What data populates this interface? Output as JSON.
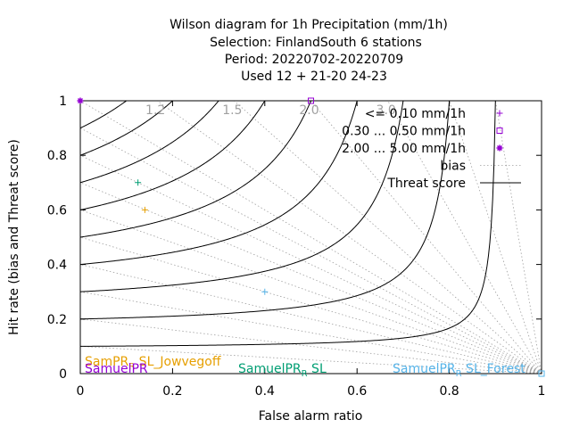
{
  "chart_data": {
    "type": "scatter",
    "title_lines": [
      "Wilson diagram  for 1h Precipitation (mm/1h)",
      "Selection: FinlandSouth       6 stations",
      "Period: 20220702-20220709",
      "Used  12 + 21-20 24-23"
    ],
    "xlabel": "False alarm ratio",
    "ylabel": "Hit rate (bias and Threat score)",
    "xlim": [
      0,
      1
    ],
    "ylim": [
      0,
      1
    ],
    "x_ticks": [
      {
        "value": 0,
        "label": "0"
      },
      {
        "value": 0.2,
        "label": "0.2"
      },
      {
        "value": 0.4,
        "label": "0.4"
      },
      {
        "value": 0.6,
        "label": "0.6"
      },
      {
        "value": 0.8,
        "label": "0.8"
      },
      {
        "value": 1,
        "label": "1"
      }
    ],
    "y_ticks": [
      {
        "value": 0,
        "label": "0"
      },
      {
        "value": 0.2,
        "label": "0.2"
      },
      {
        "value": 0.4,
        "label": "0.4"
      },
      {
        "value": 0.6,
        "label": "0.6"
      },
      {
        "value": 0.8,
        "label": "0.8"
      },
      {
        "value": 1,
        "label": "1"
      }
    ],
    "bias_lines": [
      0.1,
      0.2,
      0.3,
      0.4,
      0.5,
      0.6,
      0.7,
      0.8,
      0.9,
      1.0,
      1.2,
      1.5,
      2.0,
      3.0,
      5.0,
      10.0
    ],
    "bias_labels": [
      {
        "bias": 1.2,
        "label": "1.2"
      },
      {
        "bias": 1.5,
        "label": "1.5"
      },
      {
        "bias": 2.0,
        "label": "2.0"
      },
      {
        "bias": 3.0,
        "label": "3.0"
      }
    ],
    "threat_score_lines": [
      0.1,
      0.2,
      0.3,
      0.4,
      0.5,
      0.6,
      0.7,
      0.8,
      0.9
    ],
    "legend": [
      {
        "label": "<= 0.10 mm/1h",
        "marker": "plus",
        "color": "#9400d3"
      },
      {
        "label": "0.30 ... 0.50 mm/1h",
        "marker": "square",
        "color": "#9400d3"
      },
      {
        "label": "2.00 ... 5.00 mm/1h",
        "marker": "star",
        "color": "#9400d3"
      },
      {
        "label": "bias",
        "line": "dotted",
        "color": "#a0a0a0"
      },
      {
        "label": "Threat score",
        "line": "solid",
        "color": "#000000"
      }
    ],
    "series": [
      {
        "name": "SampPR_R SL_Jowvegoff",
        "color": "#e69f00",
        "points": [
          {
            "x": 0.14,
            "y": 0.6
          }
        ],
        "label_text": "SamPR",
        "label_sub": "R",
        "label_tail": "SL_Jowvegoff"
      },
      {
        "name": "SamuelPR",
        "color": "#9400d3",
        "points": [
          {
            "x": 0.0,
            "y": 1.0
          },
          {
            "x": 0.5,
            "y": 1.0
          }
        ],
        "label_text": "SamuelPR",
        "label_sub": "",
        "label_tail": ""
      },
      {
        "name": "SamuelPR_R SL",
        "color": "#009e73",
        "points": [
          {
            "x": 0.125,
            "y": 0.7
          }
        ],
        "label_text": "SamuelPR",
        "label_sub": "R",
        "label_tail": "SL"
      },
      {
        "name": "SamuelPR_R SL_Forest",
        "color": "#56b4e9",
        "points": [
          {
            "x": 0.4,
            "y": 0.3
          },
          {
            "x": 1.0,
            "y": 0.0
          }
        ],
        "label_text": "SamuelPR",
        "label_sub": "R",
        "label_tail": "SL_Forest"
      }
    ],
    "point_markers": [
      {
        "series": 0,
        "x": 0.14,
        "y": 0.6,
        "marker": "plus"
      },
      {
        "series": 1,
        "x": 0.0,
        "y": 1.0,
        "marker": "star"
      },
      {
        "series": 1,
        "x": 0.5,
        "y": 1.0,
        "marker": "square"
      },
      {
        "series": 2,
        "x": 0.125,
        "y": 0.7,
        "marker": "plus"
      },
      {
        "series": 3,
        "x": 0.4,
        "y": 0.3,
        "marker": "plus"
      },
      {
        "series": 3,
        "x": 1.0,
        "y": 0.0,
        "marker": "square"
      }
    ]
  }
}
